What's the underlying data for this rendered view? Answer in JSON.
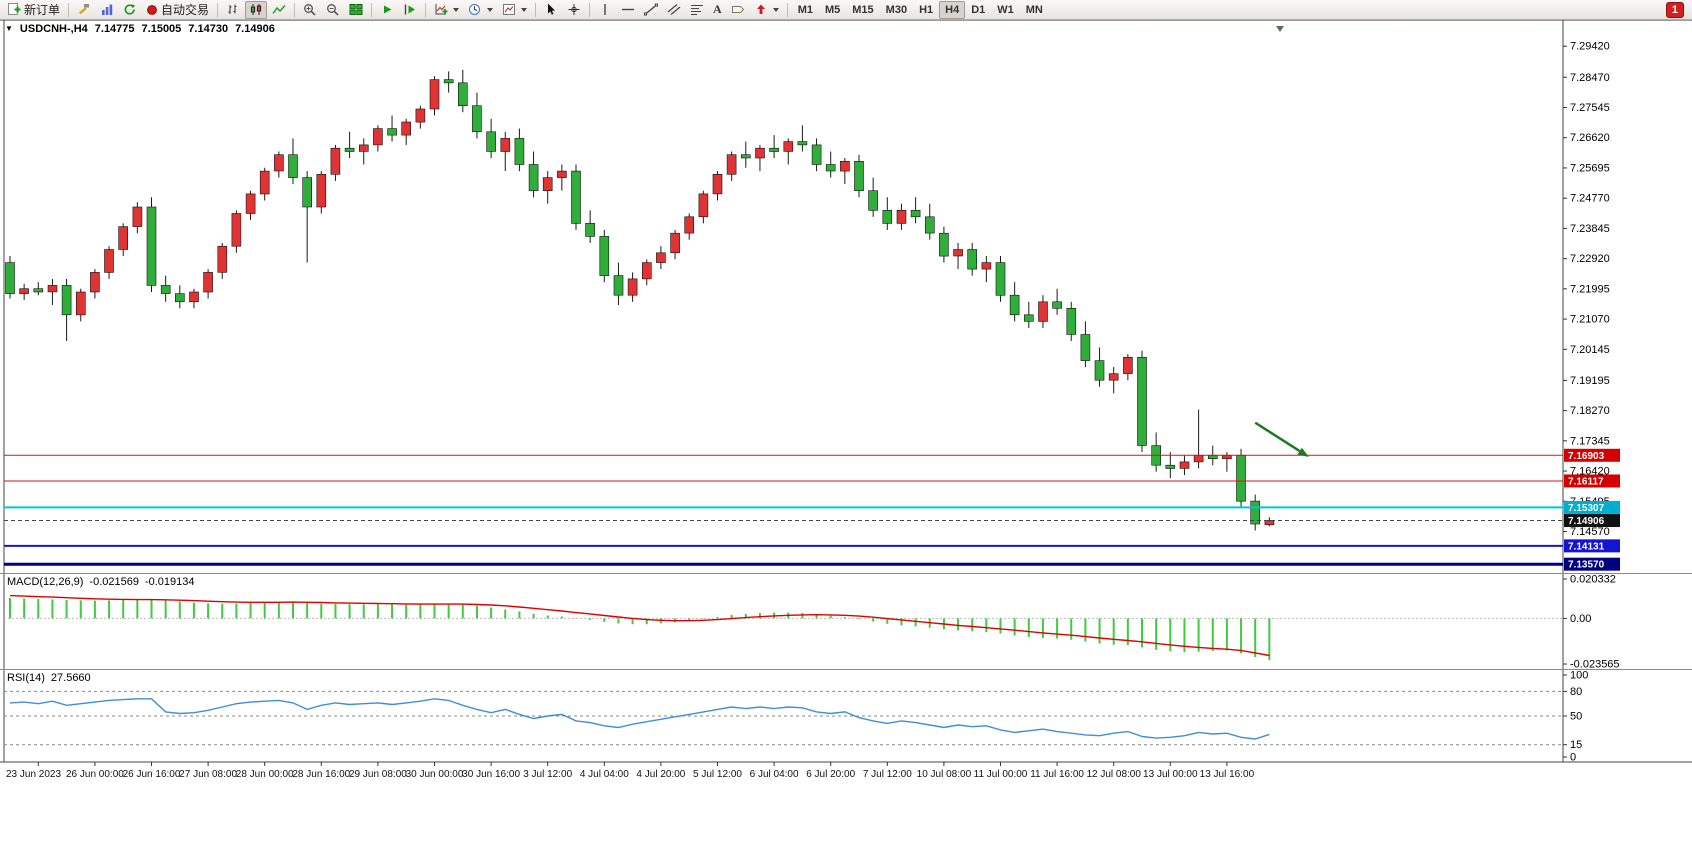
{
  "toolbar": {
    "new_order_label": "新订单",
    "autotrade_label": "自动交易",
    "timeframes": [
      {
        "label": "M1",
        "active": false
      },
      {
        "label": "M5",
        "active": false
      },
      {
        "label": "M15",
        "active": false
      },
      {
        "label": "M30",
        "active": false
      },
      {
        "label": "H1",
        "active": false
      },
      {
        "label": "H4",
        "active": true
      },
      {
        "label": "D1",
        "active": false
      },
      {
        "label": "W1",
        "active": false
      },
      {
        "label": "MN",
        "active": false
      }
    ],
    "notification_badge": "1"
  },
  "icons": {
    "collapse": "▼",
    "text_tool": "A"
  },
  "chart_header": {
    "symbol": "USDCNH-,H4",
    "open": "7.14775",
    "high": "7.15005",
    "low": "7.14730",
    "close": "7.14906"
  },
  "price_axis": {
    "labels": [
      "7.29420",
      "7.28470",
      "7.27545",
      "7.26620",
      "7.25695",
      "7.24770",
      "7.23845",
      "7.22920",
      "7.21995",
      "7.21070",
      "7.20145",
      "7.19195",
      "7.18270",
      "7.17345",
      "7.16420",
      "7.15495",
      "7.14570"
    ]
  },
  "hlines": [
    {
      "name": "resistance-line-upper",
      "price": 7.16903,
      "label": "7.16903",
      "color": "#dd1111",
      "width": 1,
      "dash": "",
      "tag_bg": "#d20000"
    },
    {
      "name": "resistance-line-lower",
      "price": 7.16117,
      "label": "7.16117",
      "color": "#dd1111",
      "width": 1,
      "dash": "",
      "tag_bg": "#d20000"
    },
    {
      "name": "support-line-cyan",
      "price": 7.15307,
      "label": "7.15307",
      "color": "#00c3e8",
      "width": 2,
      "dash": "",
      "tag_bg": "#00aed2"
    },
    {
      "name": "current-price-line",
      "price": 7.14906,
      "label": "7.14906",
      "color": "#444444",
      "width": 1,
      "dash": "4,3",
      "tag_bg": "#111111"
    },
    {
      "name": "support-line-blue",
      "price": 7.14131,
      "label": "7.14131",
      "color": "#1414d2",
      "width": 2,
      "dash": "",
      "tag_bg": "#1414d2"
    },
    {
      "name": "support-line-navy",
      "price": 7.1357,
      "label": "7.13570",
      "color": "#000080",
      "width": 3,
      "dash": "",
      "tag_bg": "#000080"
    }
  ],
  "macd": {
    "label": "MACD(12,26,9)",
    "value_macd": "-0.021569",
    "value_signal": "-0.019134",
    "axis": [
      "0.020332",
      "0.00",
      "-0.023565"
    ]
  },
  "rsi": {
    "label": "RSI(14)",
    "value": "27.5660",
    "axis": [
      "100",
      "80",
      "50",
      "15",
      "0"
    ]
  },
  "time_axis": {
    "labels": [
      "23 Jun 2023",
      "26 Jun 00:00",
      "26 Jun 16:00",
      "27 Jun 08:00",
      "28 Jun 00:00",
      "28 Jun 16:00",
      "29 Jun 08:00",
      "30 Jun 00:00",
      "30 Jun 16:00",
      "3 Jul 12:00",
      "4 Jul 04:00",
      "4 Jul 20:00",
      "5 Jul 12:00",
      "6 Jul 04:00",
      "6 Jul 20:00",
      "7 Jul 12:00",
      "10 Jul 08:00",
      "11 Jul 00:00",
      "11 Jul 16:00",
      "12 Jul 08:00",
      "13 Jul 00:00",
      "13 Jul 16:00"
    ],
    "indices": [
      2,
      6,
      10,
      14,
      18,
      22,
      26,
      30,
      34,
      38,
      42,
      46,
      50,
      54,
      58,
      62,
      66,
      70,
      74,
      78,
      82,
      86
    ]
  },
  "annotations": [
    {
      "name": "trend-arrow",
      "type": "arrow",
      "color": "#1e7a1e",
      "x1_index": 88,
      "price1": 7.179,
      "x2_index": 91.8,
      "price2": 7.1685
    }
  ],
  "chart_data": [
    {
      "type": "candlestick",
      "title": "USDCNH- H4",
      "up_color": "#e03434",
      "down_color": "#2fae3a",
      "ylim": [
        7.1333,
        7.301
      ],
      "ohlc": [
        [
          7.228,
          7.23,
          7.217,
          7.2185
        ],
        [
          7.2185,
          7.2215,
          7.2165,
          7.22
        ],
        [
          7.22,
          7.222,
          7.218,
          7.219
        ],
        [
          7.219,
          7.223,
          7.215,
          7.221
        ],
        [
          7.221,
          7.223,
          7.204,
          7.212
        ],
        [
          7.212,
          7.22,
          7.21,
          7.219
        ],
        [
          7.219,
          7.226,
          7.217,
          7.225
        ],
        [
          7.225,
          7.233,
          7.223,
          7.232
        ],
        [
          7.232,
          7.24,
          7.23,
          7.239
        ],
        [
          7.239,
          7.2465,
          7.237,
          7.245
        ],
        [
          7.245,
          7.248,
          7.219,
          7.221
        ],
        [
          7.221,
          7.224,
          7.216,
          7.2185
        ],
        [
          7.2185,
          7.221,
          7.214,
          7.216
        ],
        [
          7.216,
          7.22,
          7.214,
          7.219
        ],
        [
          7.219,
          7.226,
          7.217,
          7.225
        ],
        [
          7.225,
          7.234,
          7.223,
          7.233
        ],
        [
          7.233,
          7.244,
          7.231,
          7.243
        ],
        [
          7.243,
          7.25,
          7.241,
          7.249
        ],
        [
          7.249,
          7.257,
          7.247,
          7.256
        ],
        [
          7.256,
          7.262,
          7.254,
          7.261
        ],
        [
          7.261,
          7.266,
          7.252,
          7.254
        ],
        [
          7.254,
          7.256,
          7.228,
          7.245
        ],
        [
          7.245,
          7.256,
          7.243,
          7.255
        ],
        [
          7.255,
          7.264,
          7.253,
          7.263
        ],
        [
          7.263,
          7.268,
          7.26,
          7.262
        ],
        [
          7.262,
          7.266,
          7.258,
          7.264
        ],
        [
          7.264,
          7.27,
          7.262,
          7.269
        ],
        [
          7.269,
          7.273,
          7.265,
          7.267
        ],
        [
          7.267,
          7.272,
          7.264,
          7.271
        ],
        [
          7.271,
          7.276,
          7.269,
          7.275
        ],
        [
          7.275,
          7.285,
          7.273,
          7.284
        ],
        [
          7.284,
          7.2865,
          7.28,
          7.283
        ],
        [
          7.283,
          7.287,
          7.274,
          7.276
        ],
        [
          7.276,
          7.28,
          7.266,
          7.268
        ],
        [
          7.268,
          7.272,
          7.26,
          7.262
        ],
        [
          7.262,
          7.268,
          7.256,
          7.266
        ],
        [
          7.266,
          7.269,
          7.256,
          7.258
        ],
        [
          7.258,
          7.262,
          7.248,
          7.25
        ],
        [
          7.25,
          7.256,
          7.246,
          7.254
        ],
        [
          7.254,
          7.258,
          7.25,
          7.256
        ],
        [
          7.256,
          7.258,
          7.238,
          7.24
        ],
        [
          7.24,
          7.244,
          7.234,
          7.236
        ],
        [
          7.236,
          7.238,
          7.222,
          7.224
        ],
        [
          7.224,
          7.228,
          7.215,
          7.218
        ],
        [
          7.218,
          7.225,
          7.216,
          7.223
        ],
        [
          7.223,
          7.229,
          7.221,
          7.228
        ],
        [
          7.228,
          7.233,
          7.226,
          7.231
        ],
        [
          7.231,
          7.238,
          7.229,
          7.237
        ],
        [
          7.237,
          7.243,
          7.235,
          7.242
        ],
        [
          7.242,
          7.25,
          7.24,
          7.249
        ],
        [
          7.249,
          7.256,
          7.247,
          7.255
        ],
        [
          7.255,
          7.262,
          7.253,
          7.261
        ],
        [
          7.261,
          7.265,
          7.257,
          7.26
        ],
        [
          7.26,
          7.264,
          7.256,
          7.263
        ],
        [
          7.263,
          7.267,
          7.26,
          7.262
        ],
        [
          7.262,
          7.266,
          7.258,
          7.265
        ],
        [
          7.265,
          7.27,
          7.262,
          7.264
        ],
        [
          7.264,
          7.266,
          7.256,
          7.258
        ],
        [
          7.258,
          7.262,
          7.254,
          7.256
        ],
        [
          7.256,
          7.26,
          7.252,
          7.259
        ],
        [
          7.259,
          7.261,
          7.248,
          7.25
        ],
        [
          7.25,
          7.254,
          7.242,
          7.244
        ],
        [
          7.244,
          7.248,
          7.238,
          7.24
        ],
        [
          7.24,
          7.246,
          7.238,
          7.244
        ],
        [
          7.244,
          7.248,
          7.24,
          7.242
        ],
        [
          7.242,
          7.246,
          7.235,
          7.237
        ],
        [
          7.237,
          7.239,
          7.228,
          7.23
        ],
        [
          7.23,
          7.234,
          7.226,
          7.232
        ],
        [
          7.232,
          7.234,
          7.224,
          7.226
        ],
        [
          7.226,
          7.23,
          7.222,
          7.228
        ],
        [
          7.228,
          7.23,
          7.216,
          7.218
        ],
        [
          7.218,
          7.222,
          7.21,
          7.212
        ],
        [
          7.212,
          7.216,
          7.208,
          7.21
        ],
        [
          7.21,
          7.218,
          7.208,
          7.216
        ],
        [
          7.216,
          7.22,
          7.212,
          7.214
        ],
        [
          7.214,
          7.216,
          7.204,
          7.206
        ],
        [
          7.206,
          7.21,
          7.196,
          7.198
        ],
        [
          7.198,
          7.202,
          7.19,
          7.192
        ],
        [
          7.192,
          7.196,
          7.188,
          7.194
        ],
        [
          7.194,
          7.2,
          7.192,
          7.199
        ],
        [
          7.199,
          7.201,
          7.17,
          7.172
        ],
        [
          7.172,
          7.176,
          7.164,
          7.166
        ],
        [
          7.166,
          7.17,
          7.162,
          7.165
        ],
        [
          7.165,
          7.169,
          7.163,
          7.167
        ],
        [
          7.167,
          7.183,
          7.165,
          7.169
        ],
        [
          7.169,
          7.172,
          7.166,
          7.168
        ],
        [
          7.168,
          7.17,
          7.164,
          7.169
        ],
        [
          7.169,
          7.171,
          7.153,
          7.155
        ],
        [
          7.155,
          7.157,
          7.146,
          7.148
        ],
        [
          7.14775,
          7.15005,
          7.1473,
          7.14906
        ]
      ]
    },
    {
      "type": "bar",
      "name": "MACD(12,26,9)",
      "histogram_color": "#3ecb3e",
      "signal_color": "#e00000",
      "ylim": [
        -0.023565,
        0.020332
      ],
      "hist": [
        0.0105,
        0.0102,
        0.01,
        0.0098,
        0.0095,
        0.0093,
        0.0092,
        0.0093,
        0.0095,
        0.0097,
        0.0098,
        0.0094,
        0.0088,
        0.0082,
        0.0078,
        0.0076,
        0.0077,
        0.008,
        0.0083,
        0.0085,
        0.0085,
        0.008,
        0.0076,
        0.0075,
        0.0074,
        0.0073,
        0.0073,
        0.0072,
        0.0071,
        0.0072,
        0.0074,
        0.0075,
        0.0073,
        0.0066,
        0.0056,
        0.0046,
        0.0036,
        0.0024,
        0.0015,
        0.001,
        0.0002,
        -0.0008,
        -0.0018,
        -0.0026,
        -0.003,
        -0.003,
        -0.0026,
        -0.002,
        -0.0012,
        -0.0002,
        0.0008,
        0.0018,
        0.0024,
        0.0028,
        0.003,
        0.003,
        0.0028,
        0.0022,
        0.0014,
        0.0006,
        -0.0004,
        -0.0016,
        -0.0028,
        -0.0036,
        -0.0042,
        -0.0048,
        -0.0056,
        -0.0062,
        -0.0066,
        -0.007,
        -0.0078,
        -0.0088,
        -0.0096,
        -0.01,
        -0.0104,
        -0.011,
        -0.012,
        -0.013,
        -0.0136,
        -0.0138,
        -0.015,
        -0.0162,
        -0.017,
        -0.0174,
        -0.0172,
        -0.0168,
        -0.0166,
        -0.018,
        -0.02,
        -0.021569
      ],
      "signal": [
        0.0118,
        0.0115,
        0.0112,
        0.011,
        0.0107,
        0.0104,
        0.0101,
        0.0099,
        0.0098,
        0.0097,
        0.0097,
        0.0096,
        0.0094,
        0.0092,
        0.0089,
        0.0086,
        0.0084,
        0.0083,
        0.0083,
        0.0083,
        0.0084,
        0.0083,
        0.0082,
        0.008,
        0.0079,
        0.0078,
        0.0077,
        0.0076,
        0.0075,
        0.0074,
        0.0074,
        0.0074,
        0.0074,
        0.0072,
        0.0069,
        0.0065,
        0.0059,
        0.0052,
        0.0045,
        0.0038,
        0.003,
        0.0023,
        0.0015,
        0.0007,
        0.0,
        -0.0006,
        -0.001,
        -0.0012,
        -0.0012,
        -0.001,
        -0.0006,
        -0.0001,
        0.0004,
        0.0009,
        0.0013,
        0.0016,
        0.0018,
        0.0019,
        0.0018,
        0.0016,
        0.0012,
        0.0006,
        -0.0001,
        -0.0008,
        -0.0015,
        -0.0022,
        -0.0029,
        -0.0036,
        -0.0042,
        -0.0048,
        -0.0054,
        -0.0061,
        -0.0068,
        -0.0075,
        -0.0081,
        -0.0087,
        -0.0094,
        -0.0101,
        -0.0108,
        -0.0114,
        -0.0121,
        -0.0129,
        -0.0137,
        -0.0144,
        -0.015,
        -0.0155,
        -0.0159,
        -0.0165,
        -0.0178,
        -0.019134
      ]
    },
    {
      "type": "line",
      "name": "RSI(14)",
      "color": "#3f8fd8",
      "ylim": [
        0,
        100
      ],
      "levels": [
        80,
        50,
        15
      ],
      "values": [
        66,
        67,
        65,
        68,
        63,
        65,
        67,
        69,
        70,
        71,
        71,
        55,
        53,
        54,
        57,
        61,
        65,
        67,
        68,
        69,
        66,
        58,
        63,
        66,
        64,
        65,
        66,
        64,
        66,
        68,
        71,
        69,
        63,
        58,
        54,
        58,
        52,
        47,
        50,
        52,
        44,
        42,
        38,
        36,
        40,
        43,
        46,
        49,
        52,
        55,
        58,
        61,
        59,
        61,
        59,
        61,
        60,
        55,
        53,
        55,
        48,
        44,
        41,
        44,
        42,
        39,
        36,
        39,
        37,
        38,
        33,
        30,
        32,
        34,
        31,
        29,
        27,
        26,
        29,
        31,
        25,
        23,
        24,
        26,
        30,
        28,
        29,
        24,
        22,
        27.566
      ]
    }
  ]
}
